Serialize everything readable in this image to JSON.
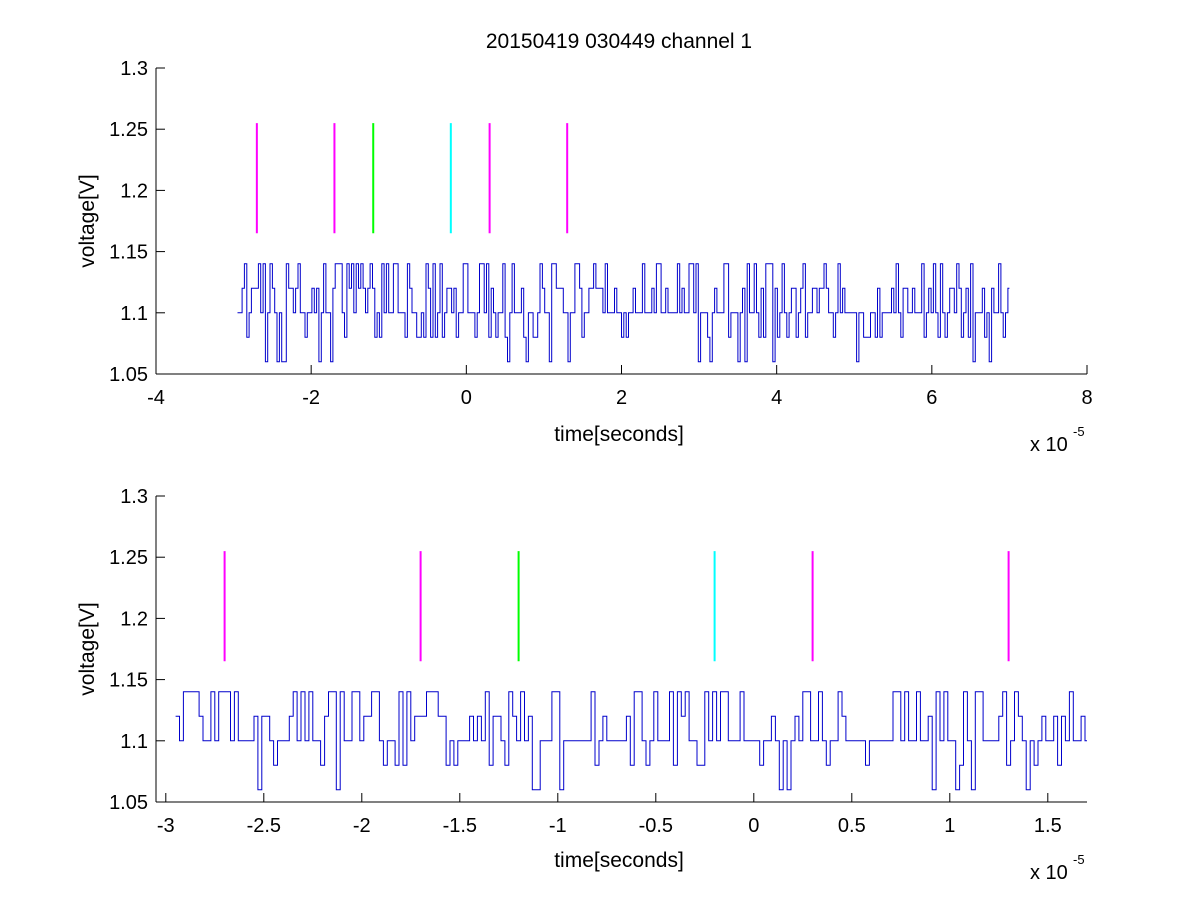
{
  "chart_data": [
    {
      "type": "line",
      "title": "20150419 030449 channel 1",
      "xlabel": "time[seconds]",
      "ylabel": "voltage[V]",
      "x_multiplier": "x 10",
      "x_multiplier_exponent": "-5",
      "xlim": [
        -4,
        8
      ],
      "ylim": [
        1.05,
        1.3
      ],
      "xticks": [
        -4,
        -2,
        0,
        2,
        4,
        6,
        8
      ],
      "xtick_labels": [
        "-4",
        "-2",
        "0",
        "2",
        "4",
        "6",
        "8"
      ],
      "yticks": [
        1.05,
        1.1,
        1.15,
        1.2,
        1.25,
        1.3
      ],
      "ytick_labels": [
        "1.05",
        "1.1",
        "1.15",
        "1.2",
        "1.25",
        "1.3"
      ],
      "grid": false,
      "signal": {
        "color": "#0000cc",
        "x_range": [
          -2.95,
          7.0
        ],
        "baseline": 1.1,
        "levels": [
          1.06,
          1.08,
          1.1,
          1.12,
          1.14
        ],
        "sample_step": 0.03
      },
      "markers": [
        {
          "x": -2.7,
          "y_range": [
            1.165,
            1.255
          ],
          "color": "#ff00ff"
        },
        {
          "x": -1.7,
          "y_range": [
            1.165,
            1.255
          ],
          "color": "#ff00ff"
        },
        {
          "x": -1.2,
          "y_range": [
            1.165,
            1.255
          ],
          "color": "#00ff00"
        },
        {
          "x": -0.2,
          "y_range": [
            1.165,
            1.255
          ],
          "color": "#00ffff"
        },
        {
          "x": 0.3,
          "y_range": [
            1.165,
            1.255
          ],
          "color": "#ff00ff"
        },
        {
          "x": 1.3,
          "y_range": [
            1.165,
            1.255
          ],
          "color": "#ff00ff"
        }
      ]
    },
    {
      "type": "line",
      "title": "",
      "xlabel": "time[seconds]",
      "ylabel": "voltage[V]",
      "x_multiplier": "x 10",
      "x_multiplier_exponent": "-5",
      "xlim": [
        -3.05,
        1.7
      ],
      "ylim": [
        1.05,
        1.3
      ],
      "xticks": [
        -3,
        -2.5,
        -2,
        -1.5,
        -1,
        -0.5,
        0,
        0.5,
        1,
        1.5
      ],
      "xtick_labels": [
        "-3",
        "-2.5",
        "-2",
        "-1.5",
        "-1",
        "-0.5",
        "0",
        "0.5",
        "1",
        "1.5"
      ],
      "yticks": [
        1.05,
        1.1,
        1.15,
        1.2,
        1.25,
        1.3
      ],
      "ytick_labels": [
        "1.05",
        "1.1",
        "1.15",
        "1.2",
        "1.25",
        "1.3"
      ],
      "grid": false,
      "signal": {
        "color": "#0000cc",
        "x_range": [
          -2.95,
          1.7
        ],
        "baseline": 1.1,
        "levels": [
          1.06,
          1.08,
          1.1,
          1.12,
          1.14
        ],
        "sample_step": 0.02
      },
      "markers": [
        {
          "x": -2.7,
          "y_range": [
            1.165,
            1.255
          ],
          "color": "#ff00ff"
        },
        {
          "x": -1.7,
          "y_range": [
            1.165,
            1.255
          ],
          "color": "#ff00ff"
        },
        {
          "x": -1.2,
          "y_range": [
            1.165,
            1.255
          ],
          "color": "#00ff00"
        },
        {
          "x": -0.2,
          "y_range": [
            1.165,
            1.255
          ],
          "color": "#00ffff"
        },
        {
          "x": 0.3,
          "y_range": [
            1.165,
            1.255
          ],
          "color": "#ff00ff"
        },
        {
          "x": 1.3,
          "y_range": [
            1.165,
            1.255
          ],
          "color": "#ff00ff"
        }
      ]
    }
  ]
}
